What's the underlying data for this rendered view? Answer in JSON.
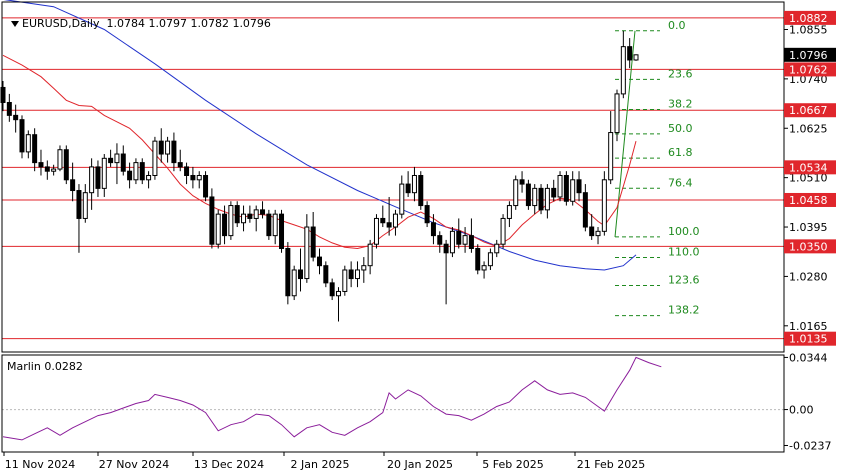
{
  "header": {
    "symbol_tf": "EURUSD,Daily",
    "ohlc": "1.0784 1.0797 1.0782 1.0796"
  },
  "indicator": {
    "label": "Marlin 0.0282",
    "axis_ticks": [
      {
        "value": 0.0344,
        "label": "0.0344"
      },
      {
        "value": 0.0,
        "label": "0.00"
      },
      {
        "value": -0.0237,
        "label": "-0.0237"
      }
    ]
  },
  "chart_data": {
    "type": "candlestick",
    "symbol": "EURUSD",
    "timeframe": "Daily",
    "last_price": {
      "value": 1.0796,
      "label": "1.0796"
    },
    "price_axis_ticks": [
      {
        "value": 1.0855,
        "label": "1.0855"
      },
      {
        "value": 1.074,
        "label": "1.0740"
      },
      {
        "value": 1.0625,
        "label": "1.0625"
      },
      {
        "value": 1.051,
        "label": "1.0510"
      },
      {
        "value": 1.0395,
        "label": "1.0395"
      },
      {
        "value": 1.028,
        "label": "1.0280"
      },
      {
        "value": 1.0165,
        "label": "1.0165"
      }
    ],
    "horizontal_levels": [
      {
        "value": 1.0882,
        "label": "1.0882"
      },
      {
        "value": 1.0762,
        "label": "1.0762"
      },
      {
        "value": 1.0667,
        "label": "1.0667"
      },
      {
        "value": 1.0534,
        "label": "1.0534"
      },
      {
        "value": 1.0458,
        "label": "1.0458"
      },
      {
        "value": 1.035,
        "label": "1.0350"
      },
      {
        "value": 1.0135,
        "label": "1.0135"
      }
    ],
    "fibonacci": {
      "from_price": 1.0372,
      "to_price": 1.0852,
      "levels": [
        {
          "ratio": 0.0,
          "label": "0.0"
        },
        {
          "ratio": 0.236,
          "label": "23.6"
        },
        {
          "ratio": 0.382,
          "label": "38.2"
        },
        {
          "ratio": 0.5,
          "label": "50.0"
        },
        {
          "ratio": 0.618,
          "label": "61.8"
        },
        {
          "ratio": 0.764,
          "label": "76.4"
        },
        {
          "ratio": 1.0,
          "label": "100.0"
        },
        {
          "ratio": 1.1,
          "label": "110.0"
        },
        {
          "ratio": 1.236,
          "label": "123.6"
        },
        {
          "ratio": 1.382,
          "label": "138.2"
        }
      ]
    },
    "x_axis_labels": [
      "11 Nov 2024",
      "27 Nov 2024",
      "13 Dec 2024",
      "2 Jan 2025",
      "20 Jan 2025",
      "5 Feb 2025",
      "21 Feb 2025"
    ],
    "candles": [
      {
        "o": 1.072,
        "h": 1.0735,
        "l": 1.0665,
        "c": 1.0685
      },
      {
        "o": 1.0685,
        "h": 1.0705,
        "l": 1.064,
        "c": 1.0655
      },
      {
        "o": 1.0655,
        "h": 1.068,
        "l": 1.0615,
        "c": 1.0645
      },
      {
        "o": 1.0645,
        "h": 1.0655,
        "l": 1.0555,
        "c": 1.057
      },
      {
        "o": 1.057,
        "h": 1.062,
        "l": 1.0555,
        "c": 1.061
      },
      {
        "o": 1.061,
        "h": 1.0625,
        "l": 1.0525,
        "c": 1.0545
      },
      {
        "o": 1.0545,
        "h": 1.0575,
        "l": 1.0515,
        "c": 1.0535
      },
      {
        "o": 1.0535,
        "h": 1.055,
        "l": 1.0505,
        "c": 1.0525
      },
      {
        "o": 1.0525,
        "h": 1.054,
        "l": 1.0515,
        "c": 1.053
      },
      {
        "o": 1.053,
        "h": 1.0585,
        "l": 1.0525,
        "c": 1.0575
      },
      {
        "o": 1.0575,
        "h": 1.0585,
        "l": 1.0495,
        "c": 1.0505
      },
      {
        "o": 1.0505,
        "h": 1.0545,
        "l": 1.0455,
        "c": 1.048
      },
      {
        "o": 1.048,
        "h": 1.0495,
        "l": 1.0335,
        "c": 1.0415
      },
      {
        "o": 1.0415,
        "h": 1.0495,
        "l": 1.0405,
        "c": 1.0475
      },
      {
        "o": 1.0475,
        "h": 1.0555,
        "l": 1.0435,
        "c": 1.0535
      },
      {
        "o": 1.0535,
        "h": 1.055,
        "l": 1.0465,
        "c": 1.0485
      },
      {
        "o": 1.0485,
        "h": 1.0565,
        "l": 1.0465,
        "c": 1.0555
      },
      {
        "o": 1.0555,
        "h": 1.0575,
        "l": 1.0535,
        "c": 1.0545
      },
      {
        "o": 1.0545,
        "h": 1.059,
        "l": 1.0495,
        "c": 1.0565
      },
      {
        "o": 1.0565,
        "h": 1.0585,
        "l": 1.0515,
        "c": 1.0525
      },
      {
        "o": 1.0525,
        "h": 1.0545,
        "l": 1.0485,
        "c": 1.0505
      },
      {
        "o": 1.0505,
        "h": 1.0555,
        "l": 1.0495,
        "c": 1.0545
      },
      {
        "o": 1.0545,
        "h": 1.0555,
        "l": 1.0495,
        "c": 1.0505
      },
      {
        "o": 1.0505,
        "h": 1.0525,
        "l": 1.0485,
        "c": 1.0515
      },
      {
        "o": 1.0515,
        "h": 1.0605,
        "l": 1.0505,
        "c": 1.0595
      },
      {
        "o": 1.0595,
        "h": 1.0625,
        "l": 1.0545,
        "c": 1.0565
      },
      {
        "o": 1.0565,
        "h": 1.0605,
        "l": 1.0545,
        "c": 1.0595
      },
      {
        "o": 1.0595,
        "h": 1.0615,
        "l": 1.0525,
        "c": 1.0545
      },
      {
        "o": 1.0545,
        "h": 1.0575,
        "l": 1.0525,
        "c": 1.0535
      },
      {
        "o": 1.0535,
        "h": 1.0545,
        "l": 1.0495,
        "c": 1.0515
      },
      {
        "o": 1.0515,
        "h": 1.0535,
        "l": 1.0485,
        "c": 1.0505
      },
      {
        "o": 1.0505,
        "h": 1.0525,
        "l": 1.0485,
        "c": 1.0515
      },
      {
        "o": 1.0515,
        "h": 1.0525,
        "l": 1.0455,
        "c": 1.0465
      },
      {
        "o": 1.0465,
        "h": 1.0485,
        "l": 1.0345,
        "c": 1.0355
      },
      {
        "o": 1.0355,
        "h": 1.0435,
        "l": 1.0345,
        "c": 1.0425
      },
      {
        "o": 1.0425,
        "h": 1.0445,
        "l": 1.0355,
        "c": 1.0375
      },
      {
        "o": 1.0375,
        "h": 1.0455,
        "l": 1.0365,
        "c": 1.0445
      },
      {
        "o": 1.0445,
        "h": 1.0455,
        "l": 1.0395,
        "c": 1.0405
      },
      {
        "o": 1.0405,
        "h": 1.0445,
        "l": 1.0385,
        "c": 1.0425
      },
      {
        "o": 1.0425,
        "h": 1.0445,
        "l": 1.0405,
        "c": 1.0415
      },
      {
        "o": 1.0415,
        "h": 1.0445,
        "l": 1.0385,
        "c": 1.0435
      },
      {
        "o": 1.0435,
        "h": 1.0455,
        "l": 1.0415,
        "c": 1.0425
      },
      {
        "o": 1.0425,
        "h": 1.0435,
        "l": 1.0365,
        "c": 1.0375
      },
      {
        "o": 1.0375,
        "h": 1.0435,
        "l": 1.0355,
        "c": 1.0425
      },
      {
        "o": 1.0425,
        "h": 1.0435,
        "l": 1.0335,
        "c": 1.0345
      },
      {
        "o": 1.0345,
        "h": 1.036,
        "l": 1.0215,
        "c": 1.0235
      },
      {
        "o": 1.0235,
        "h": 1.0305,
        "l": 1.0225,
        "c": 1.0295
      },
      {
        "o": 1.0295,
        "h": 1.0345,
        "l": 1.0245,
        "c": 1.0275
      },
      {
        "o": 1.0275,
        "h": 1.0425,
        "l": 1.0265,
        "c": 1.0395
      },
      {
        "o": 1.0395,
        "h": 1.043,
        "l": 1.0315,
        "c": 1.0325
      },
      {
        "o": 1.0325,
        "h": 1.0345,
        "l": 1.0285,
        "c": 1.0305
      },
      {
        "o": 1.0305,
        "h": 1.0315,
        "l": 1.0255,
        "c": 1.0265
      },
      {
        "o": 1.0265,
        "h": 1.0275,
        "l": 1.0225,
        "c": 1.0235
      },
      {
        "o": 1.0235,
        "h": 1.0255,
        "l": 1.0175,
        "c": 1.0245
      },
      {
        "o": 1.0245,
        "h": 1.0305,
        "l": 1.0235,
        "c": 1.0295
      },
      {
        "o": 1.0295,
        "h": 1.0315,
        "l": 1.0255,
        "c": 1.0275
      },
      {
        "o": 1.0275,
        "h": 1.0315,
        "l": 1.0255,
        "c": 1.0295
      },
      {
        "o": 1.0295,
        "h": 1.0325,
        "l": 1.0265,
        "c": 1.0305
      },
      {
        "o": 1.0305,
        "h": 1.0365,
        "l": 1.0285,
        "c": 1.0355
      },
      {
        "o": 1.0355,
        "h": 1.0425,
        "l": 1.0345,
        "c": 1.0415
      },
      {
        "o": 1.0415,
        "h": 1.0445,
        "l": 1.0395,
        "c": 1.0405
      },
      {
        "o": 1.0405,
        "h": 1.0465,
        "l": 1.0375,
        "c": 1.0395
      },
      {
        "o": 1.0395,
        "h": 1.0435,
        "l": 1.0375,
        "c": 1.0425
      },
      {
        "o": 1.0425,
        "h": 1.0515,
        "l": 1.0415,
        "c": 1.0495
      },
      {
        "o": 1.0495,
        "h": 1.0525,
        "l": 1.0465,
        "c": 1.0475
      },
      {
        "o": 1.0475,
        "h": 1.0535,
        "l": 1.0455,
        "c": 1.0515
      },
      {
        "o": 1.0515,
        "h": 1.0525,
        "l": 1.0435,
        "c": 1.0445
      },
      {
        "o": 1.0445,
        "h": 1.0455,
        "l": 1.0395,
        "c": 1.0405
      },
      {
        "o": 1.0405,
        "h": 1.0425,
        "l": 1.0355,
        "c": 1.0375
      },
      {
        "o": 1.0375,
        "h": 1.0385,
        "l": 1.0335,
        "c": 1.0355
      },
      {
        "o": 1.0355,
        "h": 1.0365,
        "l": 1.0215,
        "c": 1.0335
      },
      {
        "o": 1.0335,
        "h": 1.0395,
        "l": 1.0325,
        "c": 1.0385
      },
      {
        "o": 1.0385,
        "h": 1.0415,
        "l": 1.0345,
        "c": 1.0355
      },
      {
        "o": 1.0355,
        "h": 1.0395,
        "l": 1.0335,
        "c": 1.0375
      },
      {
        "o": 1.0375,
        "h": 1.0415,
        "l": 1.0335,
        "c": 1.0345
      },
      {
        "o": 1.0345,
        "h": 1.0355,
        "l": 1.0285,
        "c": 1.0295
      },
      {
        "o": 1.0295,
        "h": 1.0315,
        "l": 1.0275,
        "c": 1.0305
      },
      {
        "o": 1.0305,
        "h": 1.0345,
        "l": 1.0295,
        "c": 1.0335
      },
      {
        "o": 1.0335,
        "h": 1.0365,
        "l": 1.0325,
        "c": 1.0355
      },
      {
        "o": 1.0355,
        "h": 1.0425,
        "l": 1.0345,
        "c": 1.0415
      },
      {
        "o": 1.0415,
        "h": 1.0455,
        "l": 1.0395,
        "c": 1.0445
      },
      {
        "o": 1.0445,
        "h": 1.0515,
        "l": 1.0435,
        "c": 1.0505
      },
      {
        "o": 1.0505,
        "h": 1.0525,
        "l": 1.0475,
        "c": 1.0495
      },
      {
        "o": 1.0495,
        "h": 1.0505,
        "l": 1.0435,
        "c": 1.0445
      },
      {
        "o": 1.0445,
        "h": 1.0495,
        "l": 1.0425,
        "c": 1.0485
      },
      {
        "o": 1.0485,
        "h": 1.0495,
        "l": 1.0425,
        "c": 1.0435
      },
      {
        "o": 1.0435,
        "h": 1.0495,
        "l": 1.0415,
        "c": 1.0485
      },
      {
        "o": 1.0485,
        "h": 1.0505,
        "l": 1.0455,
        "c": 1.0465
      },
      {
        "o": 1.0465,
        "h": 1.0525,
        "l": 1.0455,
        "c": 1.0515
      },
      {
        "o": 1.0515,
        "h": 1.0525,
        "l": 1.0445,
        "c": 1.0455
      },
      {
        "o": 1.0455,
        "h": 1.0525,
        "l": 1.0445,
        "c": 1.0505
      },
      {
        "o": 1.0505,
        "h": 1.0525,
        "l": 1.0455,
        "c": 1.0475
      },
      {
        "o": 1.0475,
        "h": 1.0495,
        "l": 1.0385,
        "c": 1.0395
      },
      {
        "o": 1.0395,
        "h": 1.0425,
        "l": 1.0365,
        "c": 1.0375
      },
      {
        "o": 1.0375,
        "h": 1.0395,
        "l": 1.0355,
        "c": 1.0385
      },
      {
        "o": 1.0385,
        "h": 1.0525,
        "l": 1.0375,
        "c": 1.0505
      },
      {
        "o": 1.0505,
        "h": 1.0665,
        "l": 1.0495,
        "c": 1.0615
      },
      {
        "o": 1.0615,
        "h": 1.0715,
        "l": 1.0595,
        "c": 1.0705
      },
      {
        "o": 1.0705,
        "h": 1.0852,
        "l": 1.0695,
        "c": 1.0815
      },
      {
        "o": 1.0815,
        "h": 1.0835,
        "l": 1.0765,
        "c": 1.0784
      },
      {
        "o": 1.0784,
        "h": 1.0797,
        "l": 1.0782,
        "c": 1.0796
      }
    ],
    "ma_fast": [
      [
        0,
        1.0795
      ],
      [
        3,
        1.0772
      ],
      [
        6,
        1.0745
      ],
      [
        8,
        1.0718
      ],
      [
        10,
        1.069
      ],
      [
        12,
        1.0678
      ],
      [
        14,
        1.0676
      ],
      [
        16,
        1.0655
      ],
      [
        18,
        1.064
      ],
      [
        20,
        1.0625
      ],
      [
        22,
        1.0598
      ],
      [
        24,
        1.0565
      ],
      [
        26,
        1.0532
      ],
      [
        28,
        1.0495
      ],
      [
        30,
        1.0468
      ],
      [
        32,
        1.045
      ],
      [
        34,
        1.0436
      ],
      [
        36,
        1.0425
      ],
      [
        38,
        1.0418
      ],
      [
        40,
        1.0425
      ],
      [
        42,
        1.0422
      ],
      [
        44,
        1.041
      ],
      [
        46,
        1.04
      ],
      [
        48,
        1.039
      ],
      [
        50,
        1.0372
      ],
      [
        52,
        1.0358
      ],
      [
        54,
        1.0348
      ],
      [
        56,
        1.0345
      ],
      [
        58,
        1.0352
      ],
      [
        60,
        1.0375
      ],
      [
        62,
        1.0395
      ],
      [
        64,
        1.0418
      ],
      [
        66,
        1.043
      ],
      [
        68,
        1.0415
      ],
      [
        70,
        1.0395
      ],
      [
        72,
        1.0388
      ],
      [
        74,
        1.0375
      ],
      [
        76,
        1.036
      ],
      [
        78,
        1.035
      ],
      [
        80,
        1.0368
      ],
      [
        82,
        1.04
      ],
      [
        84,
        1.0425
      ],
      [
        86,
        1.0448
      ],
      [
        88,
        1.0462
      ],
      [
        90,
        1.0458
      ],
      [
        92,
        1.0435
      ],
      [
        94,
        1.0408
      ],
      [
        95,
        1.0398
      ],
      [
        97,
        1.044
      ],
      [
        99,
        1.054
      ],
      [
        100,
        1.0595
      ]
    ],
    "ma_slow": [
      [
        0,
        1.0925
      ],
      [
        8,
        1.0908
      ],
      [
        16,
        1.0855
      ],
      [
        24,
        1.0775
      ],
      [
        32,
        1.069
      ],
      [
        40,
        1.0612
      ],
      [
        48,
        1.054
      ],
      [
        56,
        1.048
      ],
      [
        62,
        1.0442
      ],
      [
        68,
        1.0405
      ],
      [
        74,
        1.0375
      ],
      [
        80,
        1.0338
      ],
      [
        84,
        1.0318
      ],
      [
        88,
        1.0305
      ],
      [
        92,
        1.0298
      ],
      [
        95,
        1.0295
      ],
      [
        98,
        1.0305
      ],
      [
        100,
        1.033
      ]
    ],
    "marlin": [
      [
        0,
        -0.018
      ],
      [
        3,
        -0.02
      ],
      [
        5,
        -0.016
      ],
      [
        7,
        -0.012
      ],
      [
        9,
        -0.017
      ],
      [
        11,
        -0.012
      ],
      [
        13,
        -0.008
      ],
      [
        15,
        -0.004
      ],
      [
        17,
        -0.002
      ],
      [
        19,
        0.001
      ],
      [
        21,
        0.004
      ],
      [
        23,
        0.006
      ],
      [
        24,
        0.01
      ],
      [
        26,
        0.008
      ],
      [
        28,
        0.006
      ],
      [
        30,
        0.003
      ],
      [
        32,
        -0.002
      ],
      [
        34,
        -0.014
      ],
      [
        36,
        -0.01
      ],
      [
        38,
        -0.008
      ],
      [
        40,
        -0.003
      ],
      [
        42,
        -0.004
      ],
      [
        44,
        -0.01
      ],
      [
        46,
        -0.018
      ],
      [
        48,
        -0.012
      ],
      [
        50,
        -0.01
      ],
      [
        52,
        -0.015
      ],
      [
        54,
        -0.017
      ],
      [
        56,
        -0.012
      ],
      [
        58,
        -0.008
      ],
      [
        60,
        -0.002
      ],
      [
        61,
        0.011
      ],
      [
        62,
        0.007
      ],
      [
        64,
        0.013
      ],
      [
        66,
        0.009
      ],
      [
        68,
        0.002
      ],
      [
        70,
        -0.003
      ],
      [
        72,
        -0.004
      ],
      [
        74,
        -0.007
      ],
      [
        76,
        -0.003
      ],
      [
        78,
        0.002
      ],
      [
        80,
        0.005
      ],
      [
        82,
        0.013
      ],
      [
        84,
        0.019
      ],
      [
        86,
        0.013
      ],
      [
        88,
        0.01
      ],
      [
        90,
        0.011
      ],
      [
        92,
        0.008
      ],
      [
        94,
        0.002
      ],
      [
        95,
        -0.001
      ],
      [
        97,
        0.013
      ],
      [
        99,
        0.026
      ],
      [
        100,
        0.0344
      ],
      [
        102,
        0.031
      ],
      [
        104,
        0.0282
      ]
    ]
  },
  "colors": {
    "bg": "#ffffff",
    "candle_up": "#ffffff",
    "candle_down": "#000000",
    "level_line": "#e0262c",
    "level_label_bg": "#e0262c",
    "fib": "#1f8a1f",
    "ma_fast": "#e0262c",
    "ma_slow": "#2233cc",
    "marlin": "#8b1e9b",
    "last_price_bg": "#000000"
  }
}
